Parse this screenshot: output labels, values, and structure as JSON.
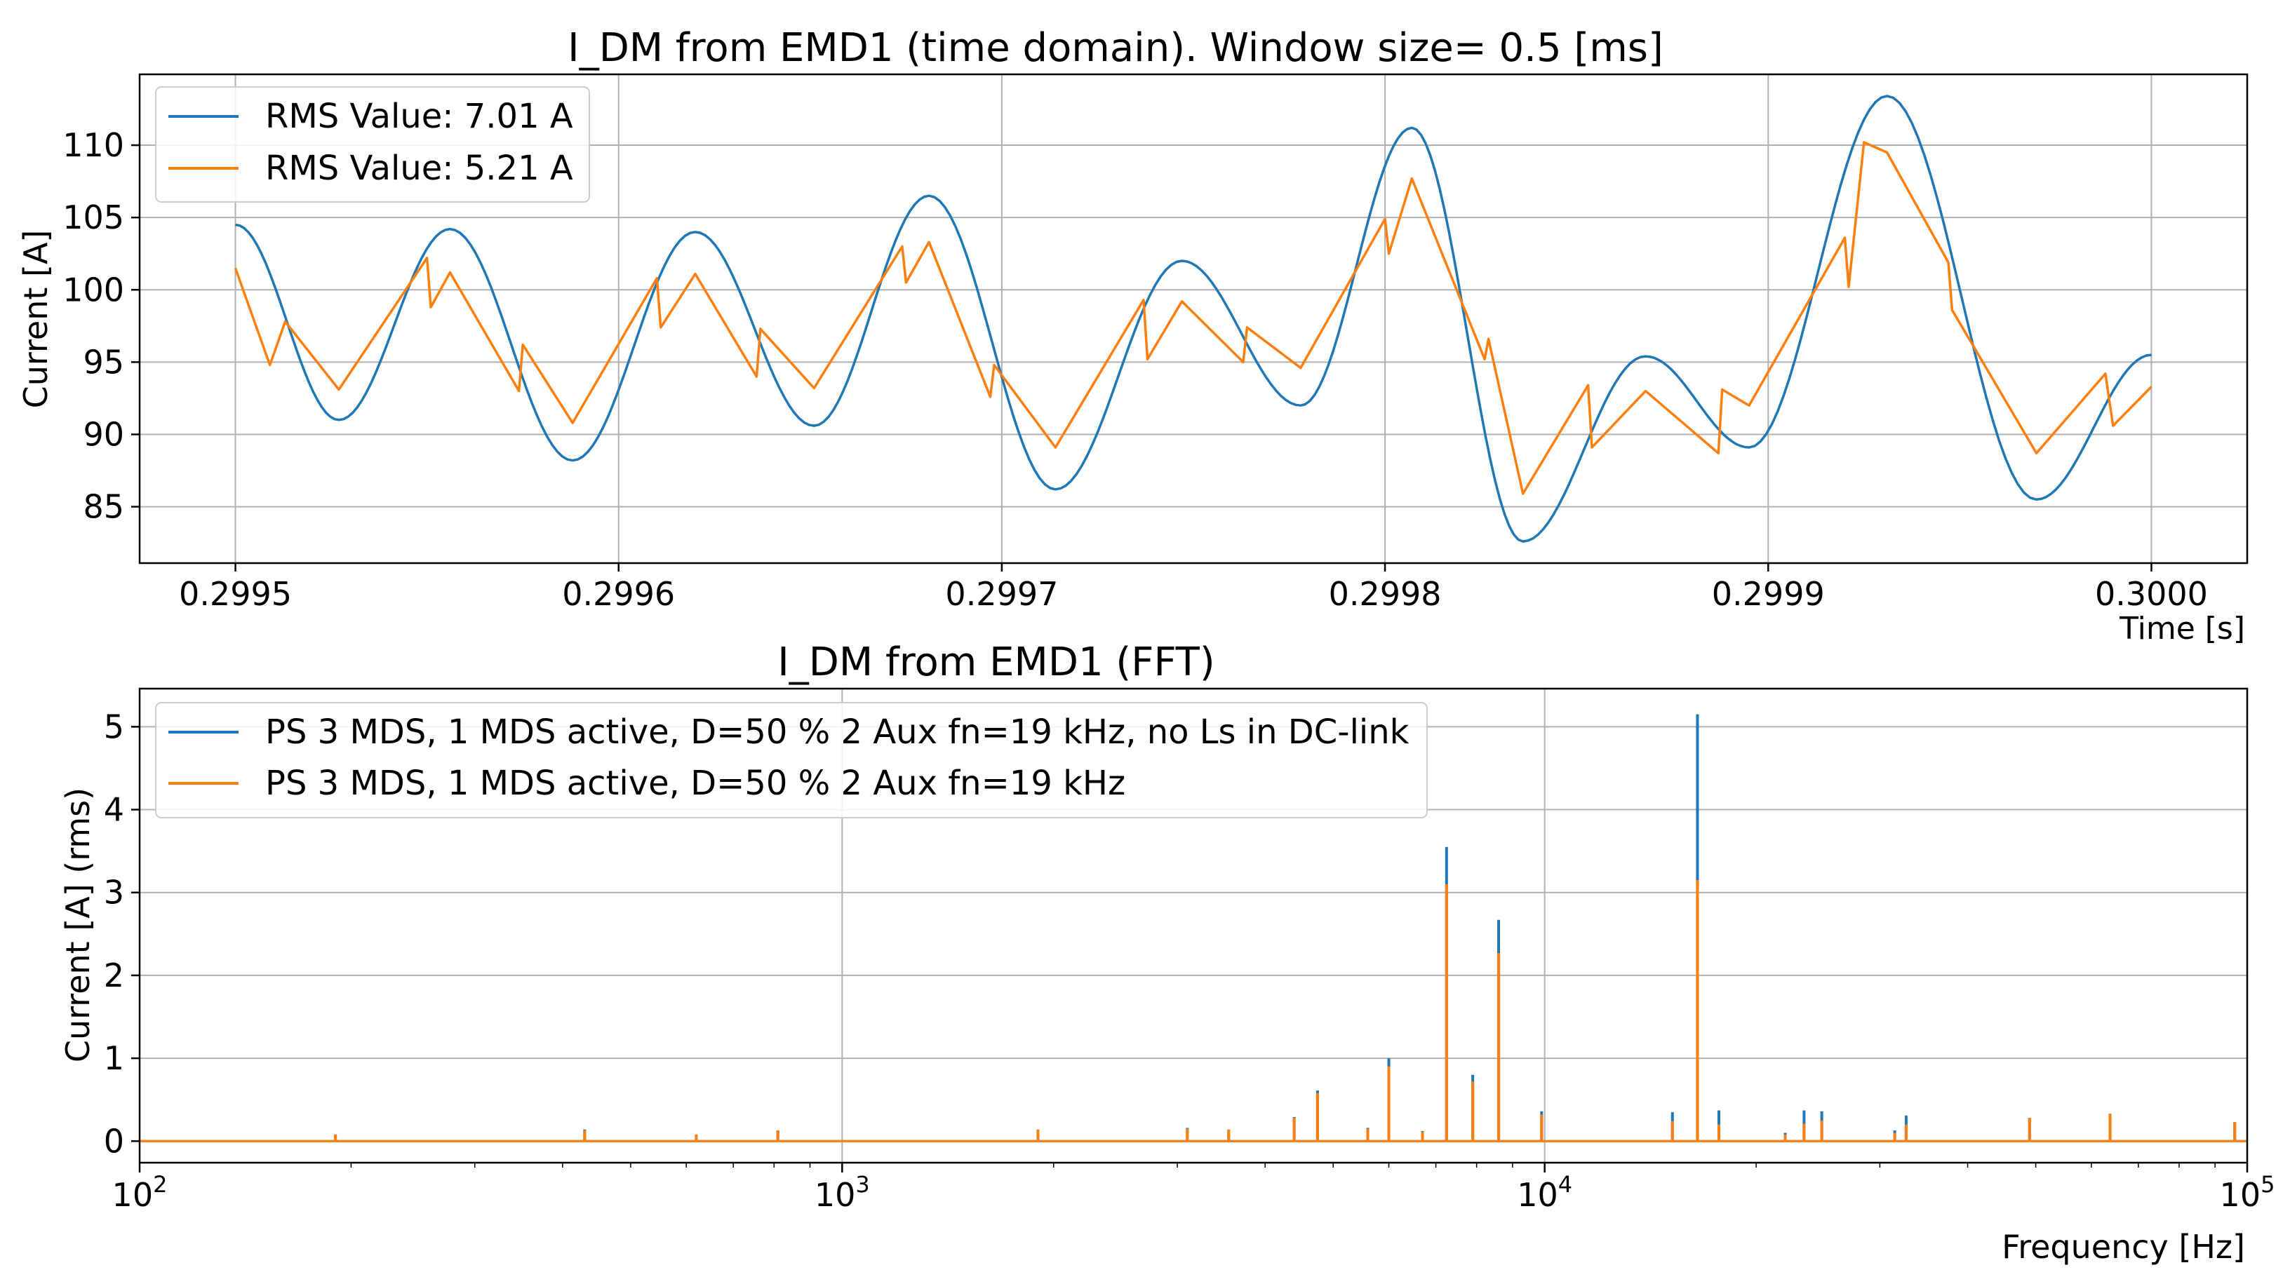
{
  "chart_data": [
    {
      "type": "line",
      "title": "I_DM from EMD1 (time domain). Window size= 0.5 [ms]",
      "xlabel": "Time [s]",
      "ylabel": "Current [A]",
      "xlim": [
        0.299475,
        0.300025
      ],
      "ylim": [
        81.1,
        114.9
      ],
      "x_ticks": [
        0.2995,
        0.2996,
        0.2997,
        0.2998,
        0.2999,
        0.3
      ],
      "x_tick_labels": [
        "0.2995",
        "0.2996",
        "0.2997",
        "0.2998",
        "0.2999",
        "0.3000"
      ],
      "y_ticks": [
        85,
        90,
        95,
        100,
        105,
        110
      ],
      "y_tick_labels": [
        "85",
        "90",
        "95",
        "100",
        "105",
        "110"
      ],
      "grid": true,
      "legend_position": "top-left",
      "series": [
        {
          "name": "RMS Value: 7.01 A",
          "color": "#1f77b4",
          "x": [
            0.2995,
            0.299527,
            0.299556,
            0.299588,
            0.29962,
            0.299651,
            0.299681,
            0.299714,
            0.299747,
            0.299778,
            0.299807,
            0.299836,
            0.299868,
            0.299895,
            0.299931,
            0.29997,
            0.3
          ],
          "values": [
            104.5,
            91.0,
            104.2,
            88.2,
            104.0,
            90.6,
            106.5,
            86.2,
            102.0,
            92.0,
            111.2,
            82.6,
            95.4,
            89.1,
            113.4,
            85.5,
            95.5
          ]
        },
        {
          "name": "RMS Value: 5.21 A",
          "color": "#ff7f0e",
          "x": [
            0.2995,
            0.299509,
            0.299513,
            0.299527,
            0.29955,
            0.299551,
            0.299556,
            0.299574,
            0.299575,
            0.299588,
            0.29961,
            0.299611,
            0.29962,
            0.299636,
            0.299637,
            0.299651,
            0.299674,
            0.299675,
            0.299681,
            0.299697,
            0.299698,
            0.299714,
            0.299737,
            0.299738,
            0.299747,
            0.299763,
            0.299764,
            0.299778,
            0.2998,
            0.299801,
            0.299807,
            0.299826,
            0.299827,
            0.299836,
            0.299853,
            0.299854,
            0.299868,
            0.299887,
            0.299888,
            0.299895,
            0.29992,
            0.299921,
            0.299925,
            0.299931,
            0.299947,
            0.299948,
            0.29997,
            0.299988,
            0.29999,
            0.3
          ],
          "values": [
            101.5,
            94.8,
            97.8,
            93.1,
            102.2,
            98.8,
            101.2,
            93.0,
            96.2,
            90.8,
            100.8,
            97.4,
            101.1,
            94.0,
            97.3,
            93.2,
            103.0,
            100.5,
            103.3,
            92.6,
            94.8,
            89.1,
            99.3,
            95.2,
            99.2,
            95.0,
            97.4,
            94.6,
            104.9,
            102.5,
            107.7,
            95.2,
            96.6,
            85.9,
            93.4,
            89.1,
            93.0,
            88.7,
            93.1,
            92.0,
            103.6,
            100.2,
            110.2,
            109.5,
            101.9,
            98.6,
            88.7,
            94.2,
            90.6,
            93.3
          ]
        }
      ]
    },
    {
      "type": "line",
      "title": "I_DM from EMD1 (FFT)",
      "xlabel": "Frequency [Hz]",
      "ylabel": "Current [A] (rms)",
      "x_scale": "log",
      "xlim": [
        100,
        100000
      ],
      "ylim": [
        -0.26,
        5.46
      ],
      "x_ticks": [
        100,
        1000,
        10000,
        100000
      ],
      "x_tick_labels": [
        "10",
        "10",
        "10",
        "10"
      ],
      "x_tick_exponents": [
        "2",
        "3",
        "4",
        "5"
      ],
      "y_ticks": [
        0,
        1,
        2,
        3,
        4,
        5
      ],
      "y_tick_labels": [
        "0",
        "1",
        "2",
        "3",
        "4",
        "5"
      ],
      "grid": true,
      "legend_position": "top-left",
      "series": [
        {
          "name": "PS 3 MDS, 1 MDS active, D=50 % 2 Aux fn=19 kHz, no Ls in DC-link",
          "color": "#1f77b4",
          "x": [
            190,
            430,
            620,
            810,
            1900,
            3100,
            3550,
            4400,
            4750,
            5600,
            6000,
            6700,
            7250,
            7900,
            8600,
            9900,
            15200,
            16500,
            17700,
            22000,
            23400,
            24800,
            31500,
            32700,
            49000,
            63800,
            96000
          ],
          "values": [
            0.08,
            0.14,
            0.08,
            0.13,
            0.14,
            0.16,
            0.14,
            0.29,
            0.61,
            0.16,
            1.0,
            0.12,
            3.55,
            0.8,
            2.67,
            0.36,
            0.35,
            5.15,
            0.37,
            0.1,
            0.37,
            0.36,
            0.13,
            0.31,
            0.28,
            0.33,
            0.23
          ]
        },
        {
          "name": "PS 3 MDS, 1 MDS active, D=50 % 2 Aux fn=19 kHz",
          "color": "#ff7f0e",
          "x": [
            190,
            430,
            620,
            810,
            1900,
            3100,
            3550,
            4400,
            4750,
            5600,
            6000,
            6700,
            7250,
            7900,
            8600,
            9900,
            15200,
            16500,
            17700,
            22000,
            23400,
            24800,
            31500,
            32700,
            49000,
            63800,
            96000
          ],
          "values": [
            0.08,
            0.13,
            0.08,
            0.13,
            0.14,
            0.15,
            0.14,
            0.28,
            0.58,
            0.15,
            0.9,
            0.11,
            3.1,
            0.72,
            2.27,
            0.32,
            0.24,
            3.15,
            0.2,
            0.08,
            0.21,
            0.25,
            0.1,
            0.2,
            0.28,
            0.33,
            0.23
          ]
        }
      ]
    }
  ]
}
